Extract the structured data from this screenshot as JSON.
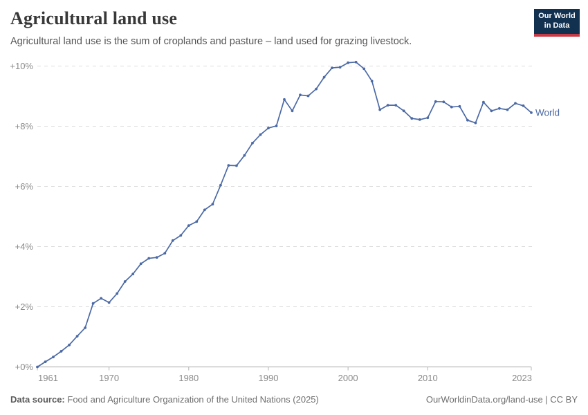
{
  "header": {
    "title": "Agricultural land use",
    "subtitle": "Agricultural land use is the sum of croplands and pasture – land used for grazing livestock.",
    "logo": {
      "line1": "Our World",
      "line2": "in Data",
      "bg_color": "#12304f",
      "bar_color": "#c73a46",
      "text_color": "#ffffff"
    }
  },
  "footer": {
    "source_label": "Data source:",
    "source_text": "Food and Agriculture Organization of the United Nations (2025)",
    "credit": "OurWorldinData.org/land-use | CC BY"
  },
  "chart_data": {
    "type": "line",
    "title": "Agricultural land use",
    "series": [
      {
        "name": "World",
        "x": [
          1961,
          1962,
          1963,
          1964,
          1965,
          1966,
          1967,
          1968,
          1969,
          1970,
          1971,
          1972,
          1973,
          1974,
          1975,
          1976,
          1977,
          1978,
          1979,
          1980,
          1981,
          1982,
          1983,
          1984,
          1985,
          1986,
          1987,
          1988,
          1989,
          1990,
          1991,
          1992,
          1993,
          1994,
          1995,
          1996,
          1997,
          1998,
          1999,
          2000,
          2001,
          2002,
          2003,
          2004,
          2005,
          2006,
          2007,
          2008,
          2009,
          2010,
          2011,
          2012,
          2013,
          2014,
          2015,
          2016,
          2017,
          2018,
          2019,
          2020,
          2021,
          2022,
          2023
        ],
        "values": [
          0.0,
          0.17,
          0.33,
          0.52,
          0.73,
          1.02,
          1.3,
          2.11,
          2.28,
          2.14,
          2.44,
          2.84,
          3.09,
          3.43,
          3.61,
          3.64,
          3.78,
          4.2,
          4.37,
          4.7,
          4.83,
          5.22,
          5.41,
          6.04,
          6.7,
          6.69,
          7.03,
          7.44,
          7.72,
          7.94,
          8.01,
          8.89,
          8.51,
          9.04,
          9.01,
          9.24,
          9.63,
          9.94,
          9.96,
          10.11,
          10.13,
          9.91,
          9.5,
          8.55,
          8.7,
          8.7,
          8.51,
          8.26,
          8.22,
          8.28,
          8.82,
          8.81,
          8.64,
          8.66,
          8.2,
          8.11,
          8.8,
          8.51,
          8.59,
          8.55,
          8.76,
          8.68,
          8.45
        ]
      }
    ],
    "xlabel": "",
    "ylabel": "",
    "xlim": [
      1961,
      2023
    ],
    "ylim": [
      0,
      10
    ],
    "xticks": [
      1961,
      1970,
      1980,
      1990,
      2000,
      2010,
      2023
    ],
    "yticks": [
      0,
      2,
      4,
      6,
      8,
      10
    ],
    "ytick_prefix": "+",
    "ytick_suffix": "%",
    "grid": "horizontal-dashed",
    "legend_position": "end-of-line",
    "colors": {
      "line": "#4b69a5",
      "grid": "#dcdcdc",
      "axis": "#a3a3a3",
      "tick": "#b5b5b5",
      "tick_label": "#8a8a8a"
    }
  }
}
